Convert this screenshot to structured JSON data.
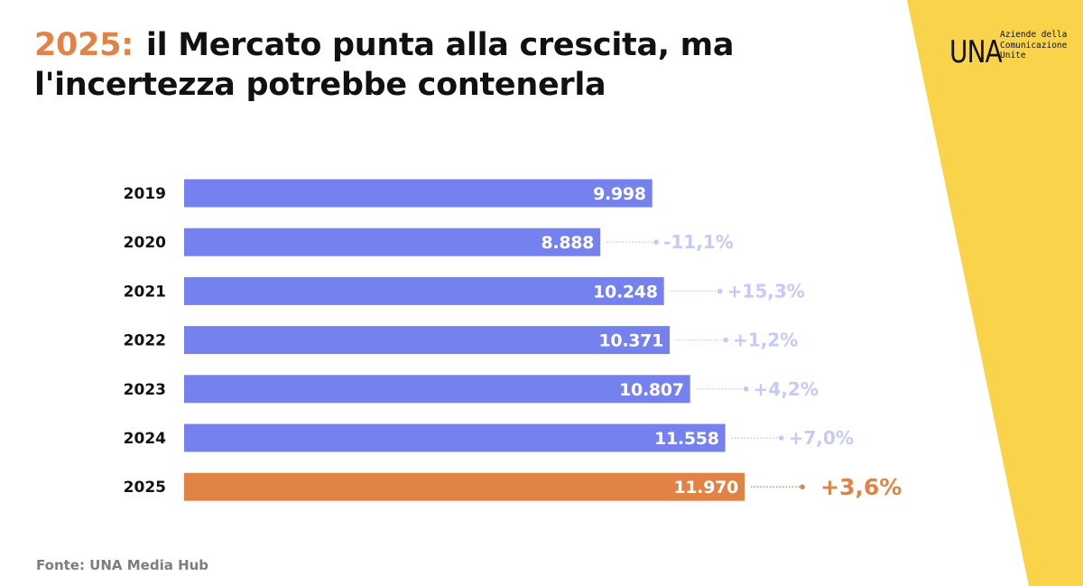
{
  "header": {
    "title_year": "2025:",
    "title_rest": "il Mercato punta alla crescita, ma l'incertezza potrebbe contenerla"
  },
  "logo": {
    "mark": "UNA",
    "line1": "Aziende della",
    "line2": "Comunicazione",
    "line3": "Unite"
  },
  "colors": {
    "bar": "#7681f0",
    "highlight": "#e08344",
    "change_text": "#c5caf6",
    "yellow": "#f9d349"
  },
  "chart_data": {
    "type": "bar",
    "orientation": "horizontal",
    "categories": [
      "2019",
      "2020",
      "2021",
      "2022",
      "2023",
      "2024",
      "2025"
    ],
    "values": [
      9998,
      8888,
      10248,
      10371,
      10807,
      11558,
      11970
    ],
    "value_labels": [
      "9.998",
      "8.888",
      "10.248",
      "10.371",
      "10.807",
      "11.558",
      "11.970"
    ],
    "change_labels": [
      "",
      "-11,1%",
      "+15,3%",
      "+1,2%",
      "+4,2%",
      "+7,0%",
      "+3,6%"
    ],
    "highlight_index": 6,
    "title": "",
    "xlabel": "",
    "ylabel": "",
    "xlim": [
      0,
      11970
    ],
    "grid": false,
    "legend": "none"
  },
  "footer": {
    "source": "Fonte: UNA Media Hub"
  }
}
